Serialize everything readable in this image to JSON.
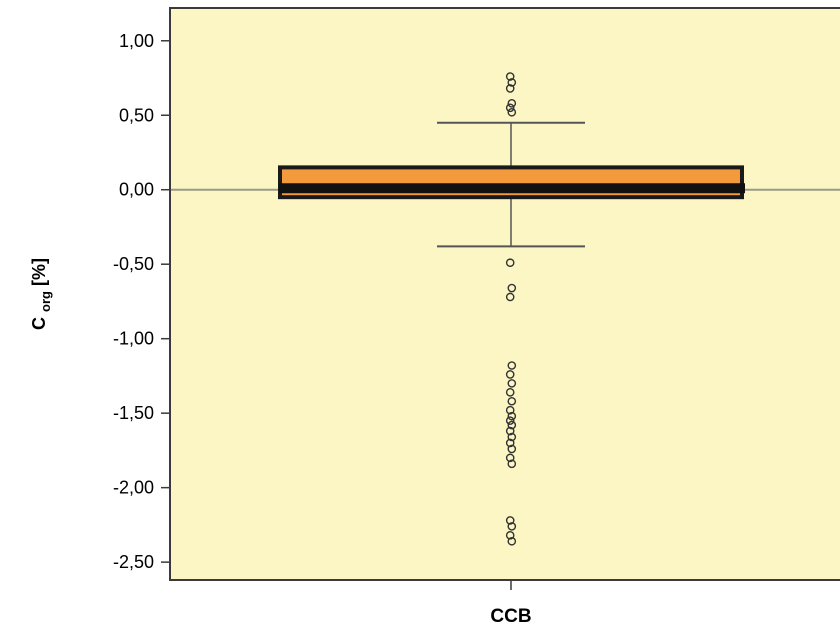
{
  "colors": {
    "plot_background": "#fbf6c4",
    "frame": "#3a3a3a",
    "box_fill": "#f39a3c",
    "box_outline": "#1a1a1a",
    "median": "#111111",
    "reference_line": "#9a9a86",
    "whisker": "#555555",
    "outlier": "#333333"
  },
  "chart_data": {
    "type": "box",
    "ylabel_main": "C",
    "ylabel_sub": "org",
    "ylabel_unit": " [%]",
    "category": "CCB",
    "ylim": [
      -2.62,
      1.22
    ],
    "y_ticks": [
      {
        "value": 1.0,
        "label": "1,00"
      },
      {
        "value": 0.5,
        "label": "0,50"
      },
      {
        "value": 0.0,
        "label": "0,00"
      },
      {
        "value": -0.5,
        "label": "-0,50"
      },
      {
        "value": -1.0,
        "label": "-1,00"
      },
      {
        "value": -1.5,
        "label": "-1,50"
      },
      {
        "value": -2.0,
        "label": "-2,00"
      },
      {
        "value": -2.5,
        "label": "-2,50"
      }
    ],
    "reference_line": 0.0,
    "grid": false,
    "box": {
      "q1": -0.05,
      "median": 0.01,
      "q3": 0.15,
      "whisker_low": -0.38,
      "whisker_high": 0.45
    },
    "outliers": [
      0.76,
      0.72,
      0.68,
      0.58,
      0.55,
      0.52,
      -0.49,
      -0.66,
      -0.72,
      -1.18,
      -1.24,
      -1.3,
      -1.36,
      -1.42,
      -1.48,
      -1.52,
      -1.55,
      -1.58,
      -1.62,
      -1.66,
      -1.7,
      -1.74,
      -1.8,
      -1.84,
      -2.22,
      -2.26,
      -2.32,
      -2.36
    ]
  }
}
